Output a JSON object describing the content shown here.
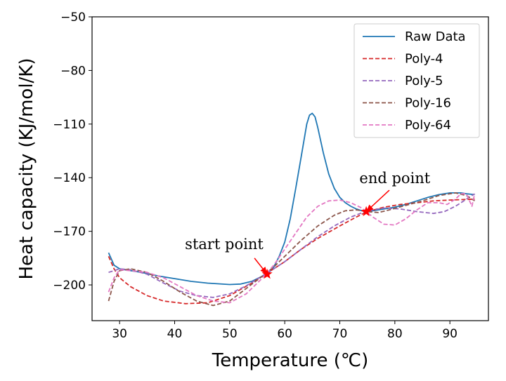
{
  "chart_data": {
    "type": "line",
    "title": "",
    "xlabel": "Temperature (℃)",
    "ylabel": "Heat capacity (KJ/mol/K)",
    "xlim": [
      25,
      97
    ],
    "ylim": [
      -220,
      -50
    ],
    "xticks": [
      30,
      40,
      50,
      60,
      70,
      80,
      90
    ],
    "yticks": [
      -200,
      -170,
      -140,
      -110,
      -80,
      -50
    ],
    "grid": false,
    "legend_position": "top-right",
    "series": [
      {
        "name": "Raw Data",
        "color": "#1f77b4",
        "dash": "solid",
        "points": [
          [
            28,
            -182
          ],
          [
            29,
            -189
          ],
          [
            30,
            -191
          ],
          [
            32,
            -192
          ],
          [
            34,
            -193
          ],
          [
            37,
            -195
          ],
          [
            40,
            -196.5
          ],
          [
            43,
            -198
          ],
          [
            46,
            -199
          ],
          [
            50,
            -199.8
          ],
          [
            52,
            -199.5
          ],
          [
            54,
            -198
          ],
          [
            56,
            -195
          ],
          [
            57,
            -193.5
          ],
          [
            58,
            -190
          ],
          [
            59,
            -184
          ],
          [
            60,
            -176
          ],
          [
            61,
            -163
          ],
          [
            62,
            -146
          ],
          [
            63,
            -128
          ],
          [
            64,
            -110
          ],
          [
            64.5,
            -105
          ],
          [
            65,
            -104
          ],
          [
            65.5,
            -106
          ],
          [
            66,
            -112
          ],
          [
            67,
            -126
          ],
          [
            68,
            -138
          ],
          [
            69,
            -146
          ],
          [
            70,
            -151
          ],
          [
            71,
            -154
          ],
          [
            72,
            -156
          ],
          [
            73,
            -157.5
          ],
          [
            74,
            -158.5
          ],
          [
            75,
            -159
          ],
          [
            76,
            -158.5
          ],
          [
            78,
            -157.5
          ],
          [
            80,
            -156.5
          ],
          [
            82,
            -155
          ],
          [
            84,
            -153
          ],
          [
            86,
            -151
          ],
          [
            88,
            -149.5
          ],
          [
            90,
            -148.5
          ],
          [
            92,
            -148.5
          ],
          [
            93,
            -149
          ],
          [
            94.5,
            -149.5
          ]
        ]
      },
      {
        "name": "Poly-4",
        "color": "#d62728",
        "dash": "dashed",
        "points": [
          [
            28,
            -184
          ],
          [
            29,
            -191
          ],
          [
            30,
            -196
          ],
          [
            32,
            -201
          ],
          [
            35,
            -206
          ],
          [
            38,
            -209
          ],
          [
            42,
            -210.5
          ],
          [
            46,
            -210
          ],
          [
            50,
            -206
          ],
          [
            54,
            -199
          ],
          [
            57,
            -193
          ],
          [
            60,
            -187
          ],
          [
            63,
            -180
          ],
          [
            66,
            -174
          ],
          [
            70,
            -167
          ],
          [
            73,
            -162
          ],
          [
            75,
            -159
          ],
          [
            78,
            -156.5
          ],
          [
            81,
            -155
          ],
          [
            84,
            -154
          ],
          [
            87,
            -153
          ],
          [
            90,
            -152.5
          ],
          [
            94.5,
            -152
          ]
        ]
      },
      {
        "name": "Poly-5",
        "color": "#9467bd",
        "dash": "dashed",
        "points": [
          [
            28,
            -193
          ],
          [
            29,
            -192
          ],
          [
            30,
            -191
          ],
          [
            32,
            -191.5
          ],
          [
            35,
            -194
          ],
          [
            38,
            -199
          ],
          [
            41,
            -203.5
          ],
          [
            44,
            -206
          ],
          [
            47,
            -207
          ],
          [
            50,
            -205
          ],
          [
            53,
            -200.5
          ],
          [
            57,
            -193
          ],
          [
            60,
            -187
          ],
          [
            63,
            -180
          ],
          [
            66,
            -173
          ],
          [
            69,
            -167
          ],
          [
            72,
            -162
          ],
          [
            75,
            -158.5
          ],
          [
            78,
            -157
          ],
          [
            81,
            -157.5
          ],
          [
            84,
            -159
          ],
          [
            87,
            -160
          ],
          [
            89,
            -159
          ],
          [
            91,
            -156
          ],
          [
            93,
            -152
          ],
          [
            94.5,
            -149
          ]
        ]
      },
      {
        "name": "Poly-16",
        "color": "#8c564b",
        "dash": "dashed",
        "points": [
          [
            28,
            -209
          ],
          [
            29,
            -198
          ],
          [
            30,
            -192
          ],
          [
            32,
            -191
          ],
          [
            35,
            -193
          ],
          [
            38,
            -198
          ],
          [
            41,
            -204
          ],
          [
            44,
            -209
          ],
          [
            47,
            -211.5
          ],
          [
            50,
            -209
          ],
          [
            53,
            -202
          ],
          [
            56,
            -195
          ],
          [
            58,
            -190
          ],
          [
            60,
            -184
          ],
          [
            63,
            -175
          ],
          [
            66,
            -167
          ],
          [
            69,
            -161
          ],
          [
            71,
            -158.5
          ],
          [
            73,
            -158
          ],
          [
            75,
            -159
          ],
          [
            77,
            -159.5
          ],
          [
            79,
            -158
          ],
          [
            82,
            -155.5
          ],
          [
            85,
            -153
          ],
          [
            88,
            -150
          ],
          [
            91,
            -148.5
          ],
          [
            93,
            -150
          ],
          [
            94.5,
            -153
          ]
        ]
      },
      {
        "name": "Poly-64",
        "color": "#e377c2",
        "dash": "dashed",
        "points": [
          [
            28,
            -204
          ],
          [
            29,
            -196
          ],
          [
            30,
            -191.5
          ],
          [
            32,
            -192
          ],
          [
            35,
            -193
          ],
          [
            38,
            -196
          ],
          [
            41,
            -201
          ],
          [
            44,
            -206
          ],
          [
            47,
            -209
          ],
          [
            50,
            -210
          ],
          [
            53,
            -205
          ],
          [
            56,
            -196
          ],
          [
            58,
            -189
          ],
          [
            60,
            -180
          ],
          [
            62,
            -171
          ],
          [
            64,
            -162
          ],
          [
            66,
            -156
          ],
          [
            68,
            -153
          ],
          [
            70,
            -152.5
          ],
          [
            72,
            -154
          ],
          [
            74,
            -157
          ],
          [
            76,
            -162
          ],
          [
            78,
            -166
          ],
          [
            80,
            -166.5
          ],
          [
            82,
            -163
          ],
          [
            84,
            -158
          ],
          [
            86,
            -154
          ],
          [
            88,
            -154
          ],
          [
            89.5,
            -155
          ],
          [
            91,
            -152
          ],
          [
            92,
            -149
          ],
          [
            93,
            -149
          ],
          [
            94,
            -156
          ],
          [
            94.5,
            -149
          ]
        ]
      }
    ],
    "annotations": [
      {
        "text": "start point",
        "marker": [
          56.8,
          -194
        ],
        "text_at": [
          49,
          -180
        ],
        "arrow_tail": [
          54.5,
          -185
        ]
      },
      {
        "text": "end point",
        "marker": [
          74.8,
          -159
        ],
        "text_at": [
          80,
          -143
        ],
        "arrow_tail": [
          79,
          -147
        ]
      }
    ],
    "marker_color": "#ff0000"
  }
}
